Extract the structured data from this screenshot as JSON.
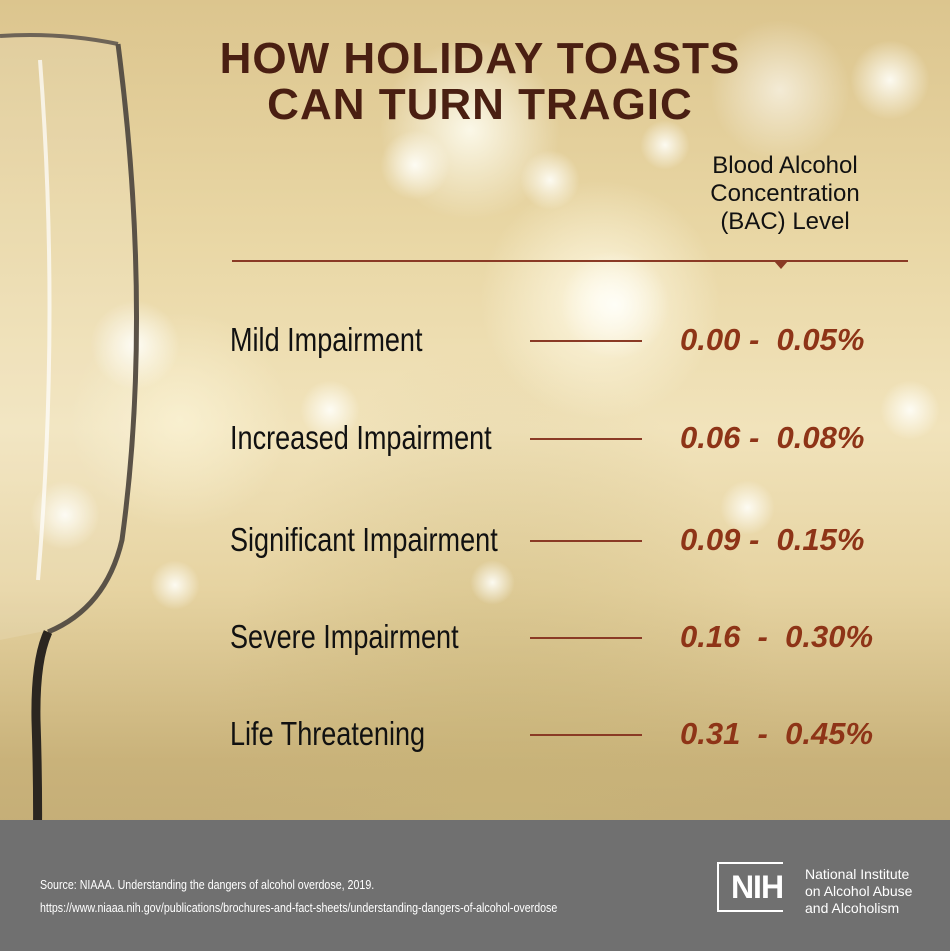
{
  "title": {
    "line1": "HOW HOLIDAY TOASTS",
    "line2": "CAN TURN TRAGIC"
  },
  "bac_header": {
    "line1": "Blood Alcohol",
    "line2": "Concentration",
    "line3": "(BAC) Level"
  },
  "rows": [
    {
      "label": "Mild Impairment",
      "range": "0.00 -  0.05%"
    },
    {
      "label": "Increased Impairment",
      "range": "0.06 -  0.08%"
    },
    {
      "label": "Significant Impairment",
      "range": "0.09 -  0.15%"
    },
    {
      "label": "Severe Impairment",
      "range": "0.16  -  0.30%"
    },
    {
      "label": "Life Threatening",
      "range": "0.31  -  0.45%"
    }
  ],
  "source": {
    "line1": "Source: NIAAA. Understanding the dangers of alcohol overdose, 2019.",
    "line2": "https://www.niaaa.nih.gov/publications/brochures-and-fact-sheets/understanding-dangers-of-alcohol-overdose"
  },
  "logo": {
    "mark": "NIH",
    "name_line1": "National Institute",
    "name_line2": "on Alcohol Abuse",
    "name_line3": "and Alcoholism"
  },
  "colors": {
    "title": "#4a1f12",
    "range": "#8e3417",
    "rule": "#8a3a25",
    "footer": "#707070"
  }
}
